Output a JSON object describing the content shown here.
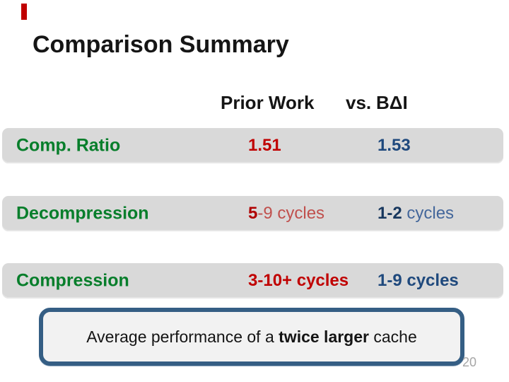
{
  "slide": {
    "title": "Comparison Summary",
    "page_number": "20"
  },
  "table": {
    "header": {
      "col1": "Prior Work",
      "vs": "vs.",
      "col2": "BΔI"
    },
    "rows": [
      {
        "label": "Comp. Ratio",
        "col1": [
          {
            "t": "1.51",
            "b": true,
            "c": "#C00000"
          }
        ],
        "col2": [
          {
            "t": "1.53",
            "b": true,
            "c": "#1F497D"
          }
        ]
      },
      {
        "label": "Decompression",
        "col1": [
          {
            "t": "5",
            "b": true,
            "c": "#B00000"
          },
          {
            "t": "-9 cycles",
            "b": false,
            "c": "#C0504D"
          }
        ],
        "col2": [
          {
            "t": "1-2",
            "b": true,
            "c": "#17375E"
          },
          {
            "t": " cycles",
            "b": false,
            "c": "#44679B"
          }
        ]
      },
      {
        "label": "Compression",
        "col1": [
          {
            "t": "3-10+ cycles",
            "b": true,
            "c": "#C00000"
          }
        ],
        "col2": [
          {
            "t": "1-9 cycles",
            "b": true,
            "c": "#1F497D"
          }
        ]
      }
    ]
  },
  "callout": {
    "segments": [
      {
        "t": "Average performance of a ",
        "b": false
      },
      {
        "t": "twice larger",
        "b": true
      },
      {
        "t": " cache",
        "b": false
      }
    ]
  },
  "colors": {
    "accent_red": "#C00000",
    "label_green": "#077E2B",
    "value_navy": "#1F497D",
    "row_background": "#D9D9D9",
    "callout_border": "#355E84",
    "callout_fill": "#F2F2F2",
    "page_number_gray": "#A6A6A6"
  }
}
